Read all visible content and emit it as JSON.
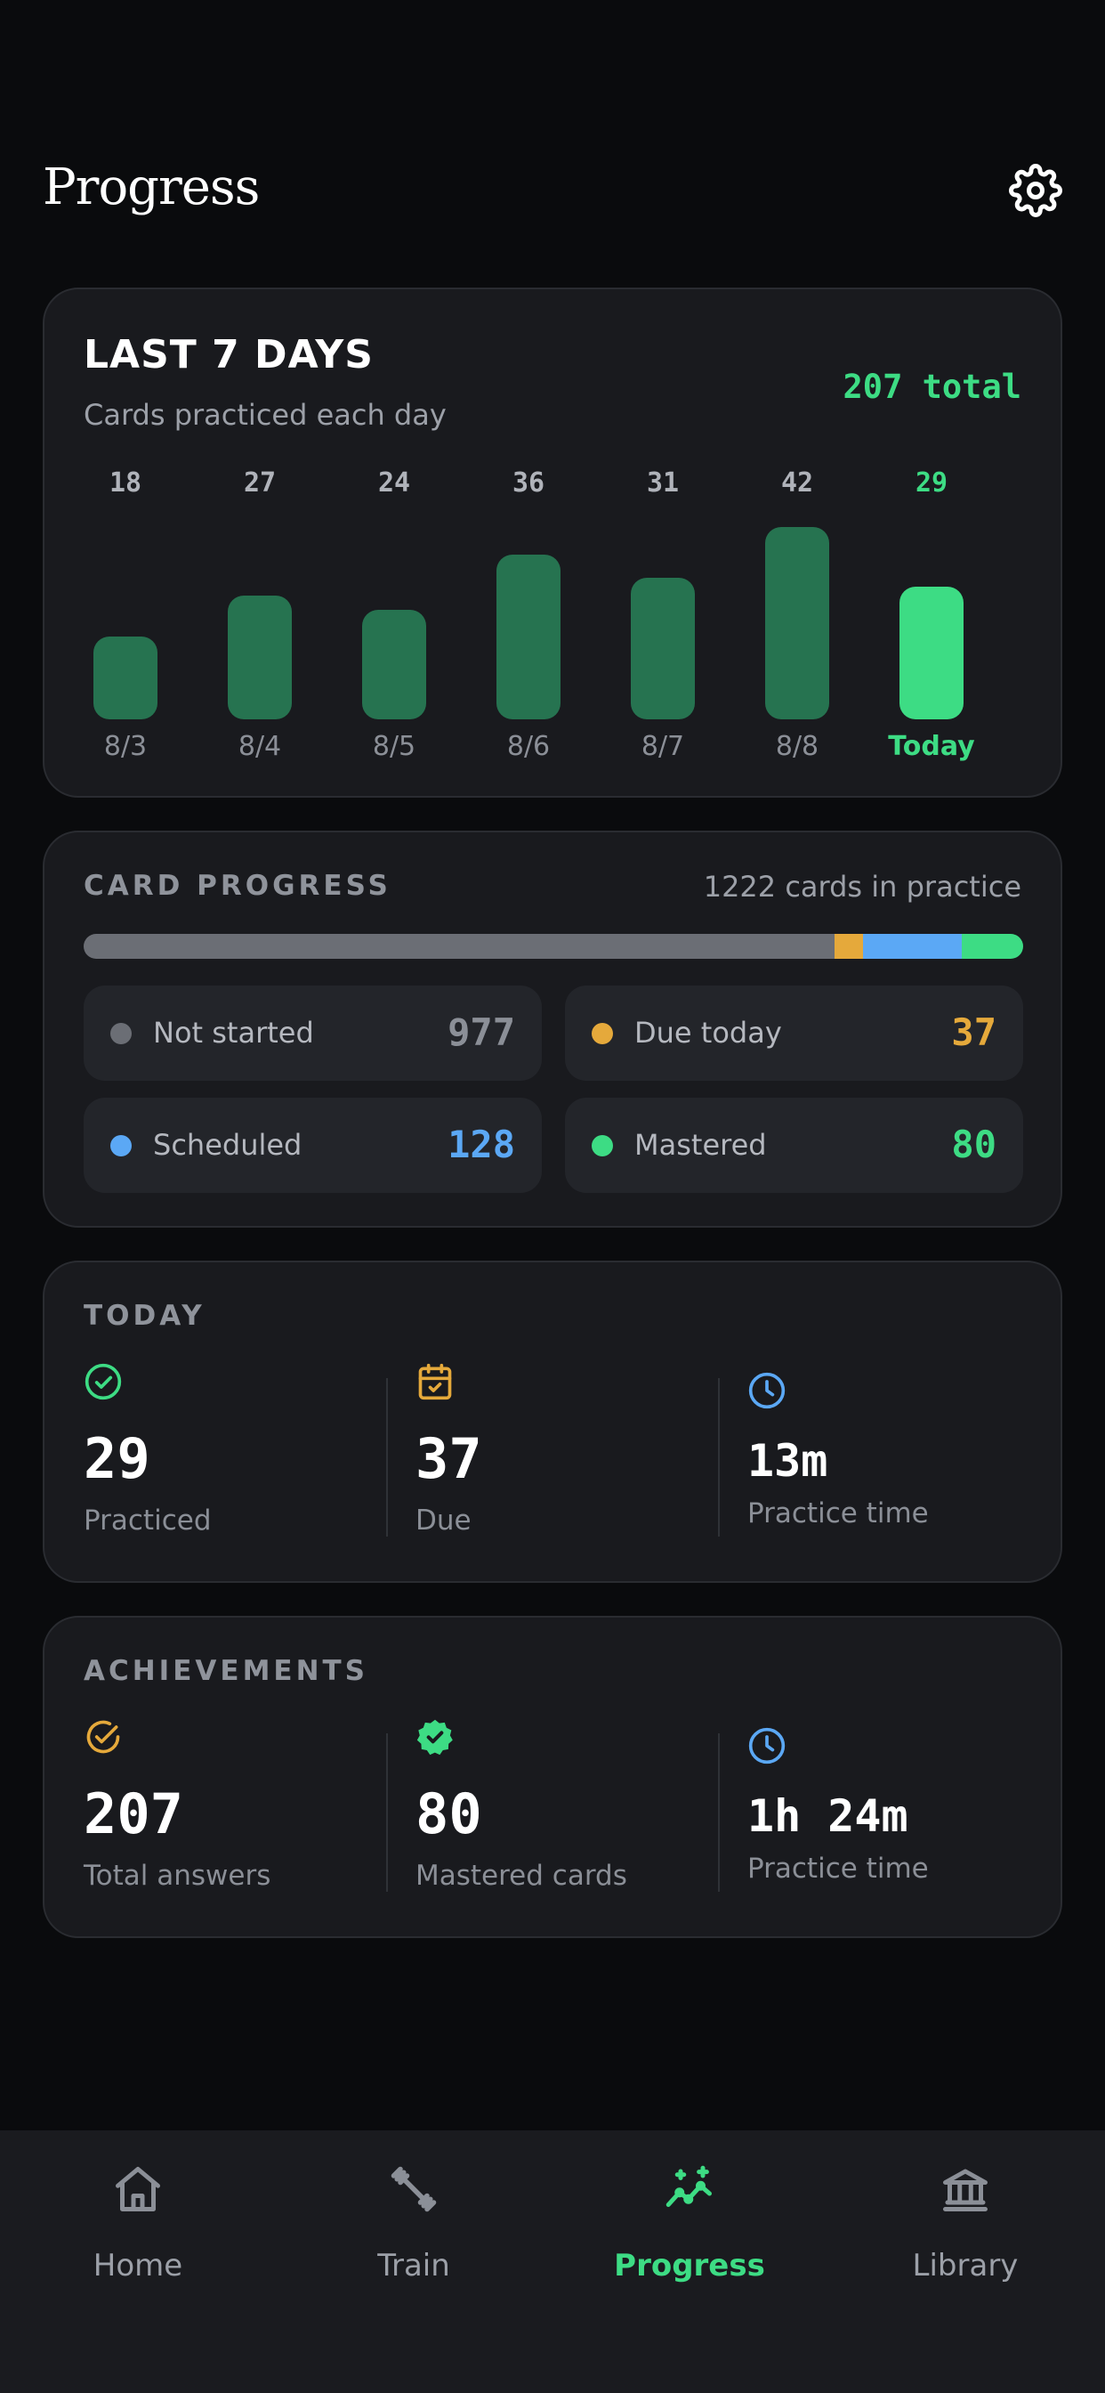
{
  "header": {
    "title": "Progress"
  },
  "week": {
    "title": "LAST 7 DAYS",
    "subtitle": "Cards practiced each day",
    "total": "207 total",
    "days": [
      {
        "value": "18",
        "date": "8/3"
      },
      {
        "value": "27",
        "date": "8/4"
      },
      {
        "value": "24",
        "date": "8/5"
      },
      {
        "value": "36",
        "date": "8/6"
      },
      {
        "value": "31",
        "date": "8/7"
      },
      {
        "value": "42",
        "date": "8/8"
      },
      {
        "value": "29",
        "date": "Today"
      }
    ]
  },
  "chart_data": {
    "type": "bar",
    "categories": [
      "8/3",
      "8/4",
      "8/5",
      "8/6",
      "8/7",
      "8/8",
      "Today"
    ],
    "values": [
      18,
      27,
      24,
      36,
      31,
      42,
      29
    ],
    "title": "LAST 7 DAYS",
    "subtitle": "Cards practiced each day",
    "highlight_category": "Today",
    "colors": {
      "bar": "#267350",
      "highlight": "#3ddc84"
    },
    "grid": false
  },
  "progress": {
    "title": "CARD PROGRESS",
    "count": "1222 cards in practice",
    "segments": [
      {
        "label": "Not started",
        "value": 977,
        "display": "977",
        "color": "#6b6e75",
        "value_color": "#8b8f97"
      },
      {
        "label": "Due today",
        "value": 37,
        "display": "37",
        "color": "#e5a93b",
        "value_color": "#e5a93b"
      },
      {
        "label": "Scheduled",
        "value": 128,
        "display": "128",
        "color": "#5ba8f5",
        "value_color": "#5ba8f5"
      },
      {
        "label": "Mastered",
        "value": 80,
        "display": "80",
        "color": "#3ddc84",
        "value_color": "#3ddc84"
      }
    ]
  },
  "today": {
    "title": "TODAY",
    "metrics": [
      {
        "icon": "check-circle-icon",
        "value": "29",
        "label": "Practiced"
      },
      {
        "icon": "calendar-check-icon",
        "value": "37",
        "label": "Due"
      },
      {
        "icon": "clock-icon",
        "value": "13m",
        "label": "Practice time"
      }
    ]
  },
  "achievements": {
    "title": "ACHIEVEMENTS",
    "metrics": [
      {
        "icon": "check-circle-icon",
        "value": "207",
        "label": "Total answers"
      },
      {
        "icon": "verified-badge-icon",
        "value": "80",
        "label": "Mastered cards"
      },
      {
        "icon": "clock-icon",
        "value": "1h 24m",
        "label": "Practice time"
      }
    ]
  },
  "nav": {
    "active": "Progress",
    "items": [
      {
        "label": "Home",
        "icon": "home-icon"
      },
      {
        "label": "Train",
        "icon": "dumbbell-icon"
      },
      {
        "label": "Progress",
        "icon": "trend-sparkle-icon"
      },
      {
        "label": "Library",
        "icon": "library-icon"
      }
    ]
  },
  "colors": {
    "background": "#0a0b0d",
    "card": "#191a1e",
    "accent": "#3ddc84",
    "amber": "#e5a93b",
    "blue": "#5ba8f5"
  }
}
